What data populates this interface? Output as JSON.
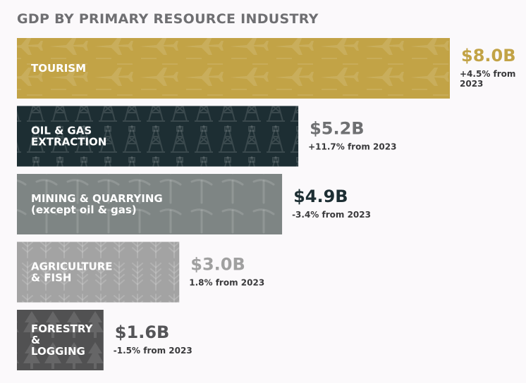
{
  "chart_data": {
    "type": "bar",
    "orientation": "horizontal",
    "title": "GDP BY PRIMARY RESOURCE INDUSTRY",
    "unit": "$B",
    "categories": [
      [
        "TOURISM"
      ],
      [
        "OIL & GAS",
        "EXTRACTION"
      ],
      [
        "MINING & QUARRYING",
        "(except oil & gas)"
      ],
      [
        "AGRICULTURE",
        "& FISH"
      ],
      [
        "FORESTRY",
        "&",
        "LOGGING"
      ]
    ],
    "values": [
      8.0,
      5.2,
      4.9,
      3.0,
      1.6
    ],
    "value_labels": [
      "$8.0B",
      "$5.2B",
      "$4.9B",
      "$3.0B",
      "$1.6B"
    ],
    "change_labels": [
      [
        "+4.5% from",
        "2023"
      ],
      [
        "+11.7% from 2023"
      ],
      [
        "-3.4% from 2023"
      ],
      [
        "1.8% from 2023"
      ],
      [
        "-1.5% from 2023"
      ]
    ],
    "bar_colors": [
      "#c2a346",
      "#1d2e33",
      "#7e8584",
      "#a3a3a3",
      "#515152"
    ],
    "value_colors": [
      "#c2a346",
      "#6f7072",
      "#1d2e33",
      "#a0a0a0",
      "#555558"
    ],
    "bar_icons": [
      "airplane-icon",
      "oil-derrick-icon",
      "pickaxe-icon",
      "wheat-icon",
      "tree-icon"
    ],
    "xlim": [
      0,
      8.0
    ],
    "grid": false,
    "legend": "none"
  }
}
